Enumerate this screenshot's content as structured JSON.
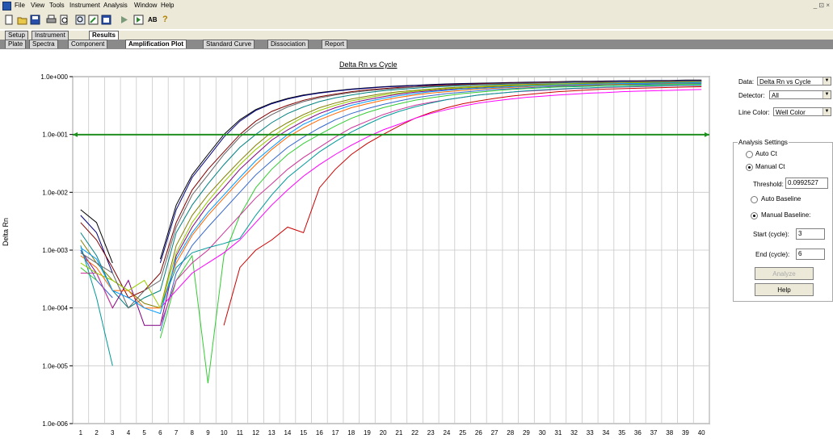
{
  "menu": [
    "File",
    "View",
    "Tools",
    "Instrument",
    "Analysis",
    "Window",
    "Help"
  ],
  "window_controls": "_ ⊡ ×",
  "toolbar": {
    "ab_label": "AB",
    "help_glyph": "?"
  },
  "top_tabs": [
    {
      "label": "Setup"
    },
    {
      "label": "Instrument"
    },
    {
      "label": "Results"
    }
  ],
  "sub_tabs": [
    {
      "label": "Plate"
    },
    {
      "label": "Spectra"
    },
    {
      "label": "Component"
    },
    {
      "label": "Amplification Plot"
    },
    {
      "label": "Standard Curve"
    },
    {
      "label": "Dissociation"
    },
    {
      "label": "Report"
    }
  ],
  "side_panel": {
    "data_label": "Data:",
    "data_value": "Delta Rn vs Cycle",
    "detector_label": "Detector:",
    "detector_value": "All",
    "line_color_label": "Line Color:",
    "line_color_value": "Well Color",
    "analysis_title": "Analysis Settings",
    "auto_ct": "Auto Ct",
    "manual_ct": "Manual Ct",
    "threshold_label": "Threshold:",
    "threshold_value": "0.0992527",
    "auto_baseline": "Auto Baseline",
    "manual_baseline": "Manual Baseline:",
    "start_label": "Start (cycle):",
    "start_value": "3",
    "end_label": "End (cycle):",
    "end_value": "6",
    "analyze_button": "Analyze",
    "help_button": "Help"
  },
  "chart_data": {
    "type": "line",
    "title": "Delta Rn vs Cycle",
    "xlabel": "",
    "ylabel": "Delta Rn",
    "x": [
      1,
      2,
      3,
      4,
      5,
      6,
      7,
      8,
      9,
      10,
      11,
      12,
      13,
      14,
      15,
      16,
      17,
      18,
      19,
      20,
      21,
      22,
      23,
      24,
      25,
      26,
      27,
      28,
      29,
      30,
      31,
      32,
      33,
      34,
      35,
      36,
      37,
      38,
      39,
      40
    ],
    "y_scale": "log",
    "ylim": [
      1e-06,
      1
    ],
    "yticks": [
      "1.0e-006",
      "1.0e-005",
      "1.0e-004",
      "1.0e-003",
      "1.0e-002",
      "1.0e-001",
      "1.0e+000"
    ],
    "threshold": 0.0992527,
    "threshold_color": "#1f8f1f",
    "grid": true,
    "series": [
      {
        "color": "#000000",
        "values": [
          0.005,
          0.003,
          0.0006,
          null,
          null,
          0.0007,
          0.006,
          0.02,
          0.045,
          0.1,
          0.18,
          0.27,
          0.35,
          0.42,
          0.48,
          0.53,
          0.57,
          0.61,
          0.64,
          0.67,
          0.69,
          0.71,
          0.73,
          0.75,
          0.76,
          0.77,
          0.78,
          0.79,
          0.8,
          0.81,
          0.82,
          0.83,
          0.83,
          0.84,
          0.85,
          0.85,
          0.86,
          0.86,
          0.87,
          0.87
        ]
      },
      {
        "color": "#000080",
        "values": [
          0.004,
          0.002,
          0.0004,
          null,
          null,
          0.0006,
          0.005,
          0.018,
          0.04,
          0.09,
          0.17,
          0.26,
          0.34,
          0.41,
          0.47,
          0.52,
          0.56,
          0.6,
          0.63,
          0.66,
          0.68,
          0.7,
          0.72,
          0.74,
          0.75,
          0.76,
          0.77,
          0.78,
          0.79,
          0.8,
          0.81,
          0.82,
          0.82,
          0.83,
          0.84,
          0.84,
          0.85,
          0.85,
          0.86,
          0.86
        ]
      },
      {
        "color": "#800000",
        "values": [
          0.003,
          0.0015,
          0.0005,
          0.00015,
          0.0002,
          0.0004,
          0.003,
          0.011,
          0.025,
          0.05,
          0.1,
          0.17,
          0.25,
          0.32,
          0.39,
          0.45,
          0.5,
          0.55,
          0.59,
          0.62,
          0.65,
          0.67,
          0.7,
          0.72,
          0.73,
          0.75,
          0.76,
          0.77,
          0.78,
          0.79,
          0.8,
          0.8,
          0.81,
          0.82,
          0.82,
          0.83,
          0.83,
          0.84,
          0.84,
          0.85
        ]
      },
      {
        "color": "#008080",
        "values": [
          0.002,
          0.0008,
          0.0002,
          0.0001,
          0.00015,
          0.0002,
          0.002,
          0.006,
          0.014,
          0.03,
          0.06,
          0.1,
          0.16,
          0.23,
          0.3,
          0.37,
          0.43,
          0.48,
          0.53,
          0.57,
          0.6,
          0.63,
          0.66,
          0.68,
          0.7,
          0.72,
          0.73,
          0.75,
          0.76,
          0.77,
          0.78,
          0.79,
          0.79,
          0.8,
          0.81,
          0.81,
          0.82,
          0.82,
          0.83,
          0.83
        ]
      },
      {
        "color": "#808000",
        "values": [
          0.0015,
          0.0006,
          0.0003,
          0.0002,
          0.00012,
          0.0001,
          0.0012,
          0.004,
          0.009,
          0.018,
          0.035,
          0.065,
          0.11,
          0.16,
          0.22,
          0.29,
          0.35,
          0.41,
          0.46,
          0.51,
          0.55,
          0.58,
          0.61,
          0.64,
          0.66,
          0.68,
          0.7,
          0.72,
          0.73,
          0.74,
          0.75,
          0.76,
          0.77,
          0.78,
          0.78,
          0.79,
          0.8,
          0.8,
          0.81,
          0.81
        ]
      },
      {
        "color": "#800080",
        "values": [
          0.001,
          0.0004,
          0.0001,
          0.0003,
          5e-05,
          5e-05,
          0.0008,
          0.0025,
          0.006,
          0.012,
          0.025,
          0.045,
          0.08,
          0.12,
          0.17,
          0.23,
          0.29,
          0.35,
          0.4,
          0.45,
          0.5,
          0.54,
          0.57,
          0.6,
          0.63,
          0.65,
          0.67,
          0.69,
          0.71,
          0.72,
          0.73,
          0.74,
          0.75,
          0.76,
          0.77,
          0.77,
          0.78,
          0.79,
          0.79,
          0.8
        ]
      },
      {
        "color": "#ff6600",
        "values": [
          0.0008,
          0.0005,
          0.0002,
          0.0002,
          0.0001,
          0.0001,
          0.0006,
          0.0018,
          0.004,
          0.008,
          0.016,
          0.03,
          0.055,
          0.09,
          0.13,
          0.18,
          0.23,
          0.29,
          0.34,
          0.39,
          0.44,
          0.48,
          0.52,
          0.55,
          0.58,
          0.61,
          0.63,
          0.65,
          0.67,
          0.69,
          0.7,
          0.71,
          0.72,
          0.73,
          0.74,
          0.75,
          0.76,
          0.76,
          0.77,
          0.77
        ]
      },
      {
        "color": "#3366cc",
        "values": [
          0.001,
          0.0003,
          0.00015,
          null,
          null,
          4e-05,
          0.0004,
          0.0012,
          0.0025,
          0.005,
          0.01,
          0.02,
          0.035,
          0.06,
          0.09,
          0.13,
          0.18,
          0.23,
          0.28,
          0.33,
          0.38,
          0.43,
          0.47,
          0.51,
          0.54,
          0.57,
          0.6,
          0.62,
          0.64,
          0.66,
          0.68,
          0.69,
          0.7,
          0.71,
          0.72,
          0.73,
          0.74,
          0.74,
          0.75,
          0.76
        ]
      },
      {
        "color": "#33cc33",
        "values": [
          0.0005,
          0.0003,
          null,
          null,
          null,
          3e-05,
          0.0003,
          0.0008,
          5e-06,
          0.0008,
          0.004,
          0.012,
          0.025,
          0.045,
          0.07,
          0.1,
          0.14,
          0.19,
          0.24,
          0.29,
          0.34,
          0.39,
          0.43,
          0.47,
          0.51,
          0.54,
          0.57,
          0.6,
          0.62,
          0.64,
          0.66,
          0.67,
          0.68,
          0.7,
          0.71,
          0.71,
          0.72,
          0.73,
          0.74,
          0.74
        ]
      },
      {
        "color": "#cc3399",
        "values": [
          0.0004,
          0.0004,
          0.0001,
          null,
          null,
          5e-05,
          0.0003,
          0.0006,
          0.001,
          0.002,
          0.004,
          0.008,
          0.014,
          0.025,
          0.04,
          0.06,
          0.09,
          0.13,
          0.17,
          0.22,
          0.27,
          0.32,
          0.36,
          0.4,
          0.44,
          0.48,
          0.51,
          0.54,
          0.56,
          0.58,
          0.6,
          0.62,
          0.63,
          0.65,
          0.66,
          0.67,
          0.68,
          0.69,
          0.7,
          0.7
        ]
      },
      {
        "color": "#009999",
        "values": [
          0.0012,
          0.00015,
          1e-05,
          null,
          null,
          0.0001,
          0.0005,
          0.0009,
          0.0011,
          0.0013,
          0.0016,
          0.004,
          0.009,
          0.018,
          0.03,
          0.05,
          0.075,
          0.11,
          0.15,
          0.2,
          0.25,
          0.3,
          0.35,
          0.4,
          0.44,
          0.48,
          0.51,
          0.54,
          0.57,
          0.59,
          0.61,
          0.63,
          0.64,
          0.66,
          0.67,
          0.68,
          0.69,
          0.7,
          0.71,
          0.71
        ]
      },
      {
        "color": "#cc0000",
        "values": [
          null,
          null,
          null,
          null,
          null,
          null,
          null,
          null,
          null,
          5e-05,
          0.0005,
          0.001,
          0.0015,
          0.0025,
          0.002,
          0.012,
          0.025,
          0.045,
          0.07,
          0.1,
          0.14,
          0.19,
          0.24,
          0.29,
          0.34,
          0.38,
          0.42,
          0.46,
          0.49,
          0.52,
          0.55,
          0.57,
          0.59,
          0.61,
          0.62,
          0.63,
          0.64,
          0.65,
          0.66,
          0.67
        ]
      },
      {
        "color": "#ff00ff",
        "values": [
          null,
          null,
          null,
          null,
          null,
          0.0001,
          0.0002,
          0.0004,
          0.0006,
          0.0009,
          0.0015,
          0.003,
          0.006,
          0.011,
          0.019,
          0.03,
          0.045,
          0.065,
          0.09,
          0.12,
          0.15,
          0.19,
          0.23,
          0.27,
          0.31,
          0.35,
          0.38,
          0.41,
          0.44,
          0.46,
          0.48,
          0.5,
          0.52,
          0.53,
          0.55,
          0.56,
          0.57,
          0.58,
          0.59,
          0.6
        ]
      },
      {
        "color": "#99cc00",
        "values": [
          0.0006,
          0.0004,
          0.0003,
          0.0002,
          0.0003,
          0.0001,
          0.0009,
          0.003,
          0.007,
          0.015,
          0.03,
          0.055,
          0.09,
          0.14,
          0.2,
          0.26,
          0.32,
          0.38,
          0.43,
          0.48,
          0.52,
          0.56,
          0.59,
          0.62,
          0.64,
          0.66,
          0.68,
          0.7,
          0.71,
          0.72,
          0.74,
          0.75,
          0.75,
          0.76,
          0.77,
          0.78,
          0.78,
          0.79,
          0.79,
          0.8
        ]
      },
      {
        "color": "#666666",
        "values": [
          0.0009,
          0.0006,
          0.0004,
          0.0001,
          0.0002,
          0.0003,
          0.0025,
          0.009,
          0.02,
          0.045,
          0.09,
          0.15,
          0.22,
          0.3,
          0.37,
          0.43,
          0.48,
          0.53,
          0.57,
          0.6,
          0.63,
          0.66,
          0.68,
          0.7,
          0.72,
          0.73,
          0.75,
          0.76,
          0.77,
          0.78,
          0.79,
          0.8,
          0.8,
          0.81,
          0.82,
          0.82,
          0.83,
          0.83,
          0.84,
          0.84
        ]
      },
      {
        "color": "#0099ff",
        "values": [
          0.0011,
          0.0007,
          0.0002,
          0.00015,
          0.0001,
          8e-05,
          0.0007,
          0.002,
          0.0045,
          0.009,
          0.018,
          0.035,
          0.06,
          0.1,
          0.15,
          0.2,
          0.26,
          0.32,
          0.37,
          0.42,
          0.47,
          0.51,
          0.55,
          0.58,
          0.61,
          0.63,
          0.65,
          0.67,
          0.69,
          0.7,
          0.72,
          0.73,
          0.74,
          0.75,
          0.76,
          0.76,
          0.77,
          0.78,
          0.78,
          0.79
        ]
      }
    ]
  }
}
